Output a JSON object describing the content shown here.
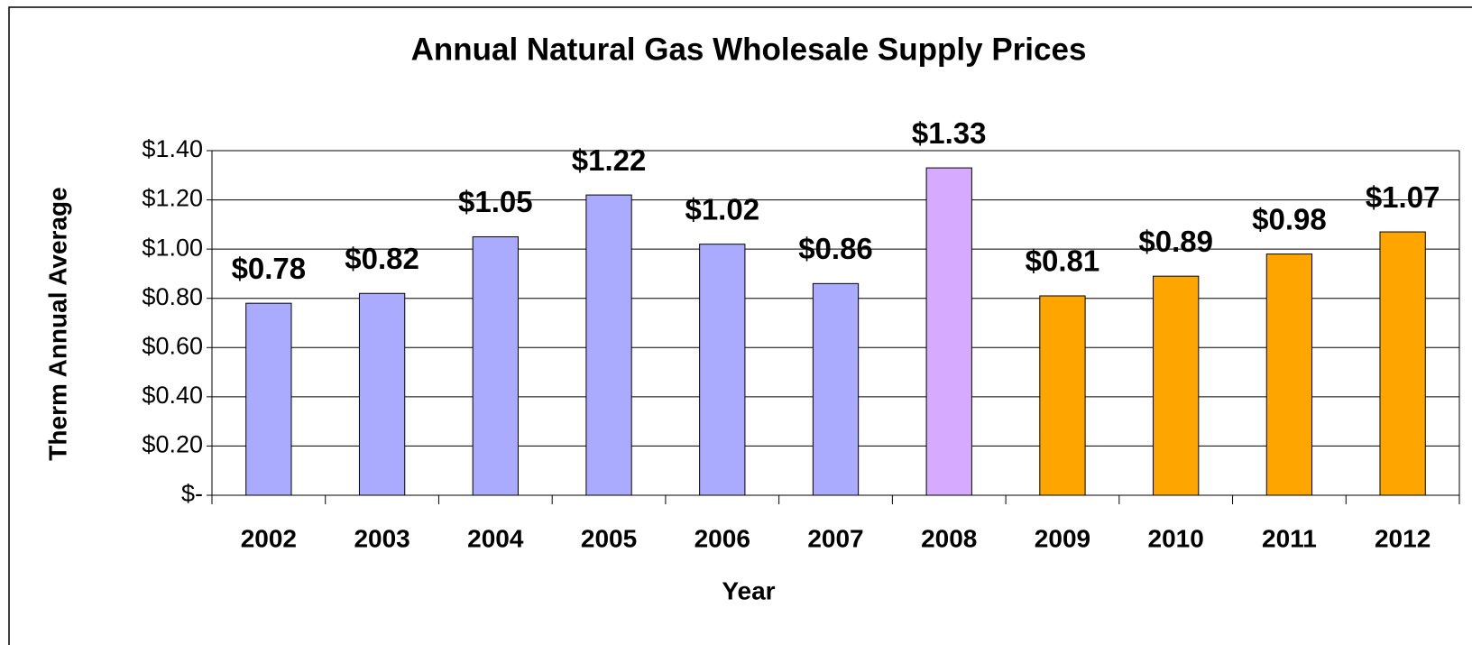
{
  "chart_data": {
    "type": "bar",
    "title": "Annual Natural Gas Wholesale Supply Prices",
    "x_label": "Year",
    "y_label": "Therm Annual Average",
    "categories": [
      "2002",
      "2003",
      "2004",
      "2005",
      "2006",
      "2007",
      "2008",
      "2009",
      "2010",
      "2011",
      "2012"
    ],
    "values": [
      0.78,
      0.82,
      1.05,
      1.22,
      1.02,
      0.86,
      1.33,
      0.81,
      0.89,
      0.98,
      1.07
    ],
    "value_labels": [
      "$0.78",
      "$0.82",
      "$1.05",
      "$1.22",
      "$1.02",
      "$0.86",
      "$1.33",
      "$0.81",
      "$0.89",
      "$0.98",
      "$1.07"
    ],
    "colors": [
      "#aaaaff",
      "#aaaaff",
      "#aaaaff",
      "#aaaaff",
      "#aaaaff",
      "#aaaaff",
      "#d5aaff",
      "#ffa500",
      "#ffa500",
      "#ffa500",
      "#ffa500"
    ],
    "ylim": [
      0,
      1.4
    ],
    "yticks": [
      {
        "value": 0,
        "label": "$-"
      },
      {
        "value": 0.2,
        "label": "$0.20"
      },
      {
        "value": 0.4,
        "label": "$0.40"
      },
      {
        "value": 0.6,
        "label": "$0.60"
      },
      {
        "value": 0.8,
        "label": "$0.80"
      },
      {
        "value": 1.0,
        "label": "$1.00"
      },
      {
        "value": 1.2,
        "label": "$1.20"
      },
      {
        "value": 1.4,
        "label": "$1.40"
      }
    ],
    "grid": true
  }
}
